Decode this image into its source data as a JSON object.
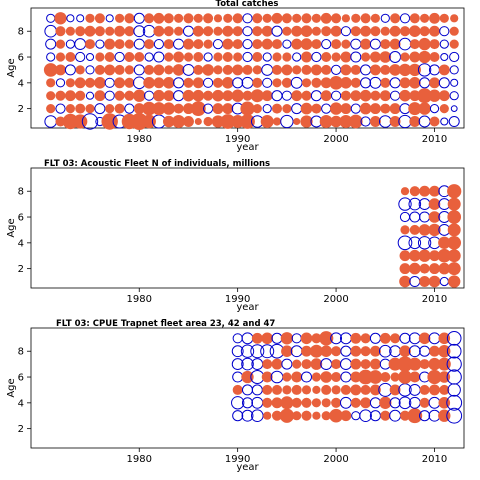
{
  "chart_data": [
    {
      "type": "scatter",
      "title": "Total catches",
      "xlabel": "year",
      "ylabel": "Age",
      "xlim": [
        1969,
        2013
      ],
      "ylim": [
        0.5,
        9.8
      ],
      "x_ticks": [
        1980,
        1990,
        2000,
        2010
      ],
      "y_ticks": [
        2,
        4,
        6,
        8
      ],
      "years": [
        1971,
        1972,
        1973,
        1974,
        1975,
        1976,
        1977,
        1978,
        1979,
        1980,
        1981,
        1982,
        1983,
        1984,
        1985,
        1986,
        1987,
        1988,
        1989,
        1990,
        1991,
        1992,
        1993,
        1994,
        1995,
        1996,
        1997,
        1998,
        1999,
        2000,
        2001,
        2002,
        2003,
        2004,
        2005,
        2006,
        2007,
        2008,
        2009,
        2010,
        2011,
        2012
      ],
      "ages": [
        1,
        2,
        3,
        4,
        5,
        6,
        7,
        8,
        9
      ],
      "residuals_by_age": [
        [
          -0.8,
          0.6,
          1.4,
          1.2,
          -1.4,
          -0.4,
          1.6,
          -1.0,
          1.4,
          1.7,
          1.1,
          -1.0,
          0.8,
          1.0,
          0.7,
          0.3,
          0.5,
          0.9,
          1.3,
          1.0,
          1.3,
          -0.8,
          1.0,
          0.4,
          -0.9,
          0.3,
          0.9,
          -0.7,
          1.0,
          0.8,
          1.0,
          1.1,
          -0.5,
          0.7,
          -0.8,
          0.7,
          -0.9,
          0.7,
          -0.7,
          0.6,
          -0.3,
          -0.6
        ],
        [
          0.5,
          -0.5,
          0.5,
          0.6,
          0.5,
          -0.6,
          0.5,
          0.6,
          -0.5,
          0.7,
          1.1,
          1.0,
          0.9,
          0.6,
          0.7,
          1.3,
          -0.5,
          0.7,
          0.7,
          -0.7,
          1.2,
          0.5,
          -0.4,
          0.6,
          0.5,
          -0.6,
          0.8,
          0.6,
          -0.5,
          0.9,
          0.7,
          -0.5,
          0.8,
          0.7,
          0.6,
          0.7,
          -0.6,
          1.0,
          0.9,
          -0.4,
          0.5,
          -0.2
        ],
        [
          0.5,
          0.6,
          0.7,
          0.6,
          -0.3,
          0.7,
          -0.5,
          0.6,
          0.6,
          0.9,
          -0.5,
          0.8,
          0.7,
          -0.6,
          0.8,
          0.8,
          0.6,
          0.8,
          0.7,
          0.9,
          0.6,
          1.0,
          0.7,
          -0.6,
          -0.5,
          0.7,
          0.6,
          -0.6,
          0.7,
          -0.5,
          0.6,
          0.7,
          0.8,
          0.6,
          0.7,
          -0.5,
          0.8,
          0.7,
          1.3,
          0.9,
          0.7,
          -0.4
        ],
        [
          0.5,
          -0.4,
          0.5,
          0.7,
          0.6,
          0.8,
          -0.5,
          0.7,
          0.6,
          -0.8,
          0.8,
          0.7,
          0.8,
          -0.6,
          0.6,
          0.7,
          -0.5,
          0.6,
          0.8,
          -0.6,
          -0.7,
          0.6,
          -0.5,
          0.5,
          0.6,
          -0.7,
          0.5,
          0.6,
          0.7,
          1.1,
          0.8,
          0.6,
          -0.6,
          -0.7,
          0.6,
          -0.6,
          0.7,
          0.8,
          -0.6,
          0.7,
          -0.6,
          -0.3
        ],
        [
          1.1,
          0.7,
          -0.6,
          0.5,
          -0.4,
          0.6,
          0.7,
          0.6,
          0.5,
          -0.6,
          0.6,
          0.7,
          0.5,
          0.8,
          -0.7,
          0.6,
          0.8,
          0.5,
          0.6,
          0.7,
          0.6,
          0.5,
          -0.7,
          0.6,
          0.7,
          0.5,
          0.6,
          0.7,
          0.6,
          -0.5,
          0.7,
          0.6,
          -0.6,
          0.7,
          0.6,
          0.8,
          0.9,
          0.9,
          -0.9,
          -0.6,
          0.7,
          -0.4
        ],
        [
          -0.4,
          0.5,
          0.6,
          -0.5,
          -0.3,
          0.5,
          0.6,
          -0.5,
          0.6,
          0.6,
          -0.4,
          -0.6,
          0.5,
          0.7,
          0.5,
          0.6,
          -0.4,
          0.5,
          0.6,
          0.5,
          -0.5,
          0.6,
          -0.4,
          0.5,
          0.5,
          -0.4,
          0.7,
          -0.5,
          0.6,
          0.5,
          0.7,
          -0.6,
          0.5,
          0.7,
          0.8,
          -0.7,
          0.5,
          0.7,
          0.9,
          0.6,
          -0.3,
          -0.5
        ],
        [
          -0.6,
          0.5,
          -0.4,
          -0.7,
          0.6,
          -0.4,
          0.7,
          0.6,
          0.5,
          -0.6,
          0.6,
          -0.5,
          0.6,
          -0.6,
          0.7,
          0.6,
          0.5,
          -0.5,
          0.7,
          0.6,
          -0.5,
          0.6,
          0.7,
          0.6,
          -0.4,
          0.7,
          0.8,
          0.6,
          -0.5,
          0.6,
          0.5,
          -0.6,
          0.7,
          -0.6,
          0.6,
          0.7,
          -0.8,
          0.6,
          0.9,
          0.6,
          -0.4,
          0.5
        ],
        [
          -0.8,
          0.6,
          0.5,
          0.6,
          0.7,
          0.6,
          0.5,
          0.7,
          0.6,
          -0.7,
          -0.8,
          0.7,
          0.6,
          0.5,
          -0.6,
          0.7,
          0.6,
          0.5,
          0.7,
          0.6,
          -0.5,
          0.6,
          0.7,
          -0.6,
          0.5,
          0.7,
          0.8,
          0.5,
          0.6,
          0.7,
          -0.5,
          0.6,
          0.7,
          0.6,
          0.5,
          0.7,
          0.6,
          0.8,
          0.6,
          0.7,
          -0.5,
          0.5
        ],
        [
          -0.4,
          0.9,
          -0.3,
          -0.3,
          0.5,
          0.6,
          -0.3,
          0.5,
          0.6,
          -0.6,
          0.6,
          0.7,
          0.6,
          0.5,
          0.6,
          0.5,
          0.6,
          0.4,
          0.5,
          0.6,
          -0.5,
          0.6,
          0.5,
          0.7,
          0.6,
          0.5,
          0.6,
          0.5,
          0.7,
          0.6,
          0.4,
          0.5,
          0.6,
          0.5,
          -0.4,
          0.6,
          -0.5,
          0.6,
          0.5,
          0.7,
          0.5,
          0.4
        ]
      ]
    },
    {
      "type": "scatter",
      "title": "FLT 03: Acoustic Fleet   N of individuals, millions",
      "xlabel": "year",
      "ylabel": "Age",
      "xlim": [
        1969,
        2013
      ],
      "ylim": [
        0.5,
        9.8
      ],
      "x_ticks": [
        1980,
        1990,
        2000,
        2010
      ],
      "y_ticks": [
        2,
        4,
        6,
        8
      ],
      "years": [
        2007,
        2008,
        2009,
        2010,
        2011,
        2012
      ],
      "ages": [
        1,
        2,
        3,
        4,
        5,
        6,
        7,
        8
      ],
      "residuals_by_age": [
        [
          0.8,
          -0.6,
          0.7,
          0.8,
          -0.4,
          0.9
        ],
        [
          0.7,
          0.8,
          0.6,
          0.7,
          0.8,
          1.0
        ],
        [
          0.7,
          0.8,
          0.9,
          0.7,
          1.1,
          1.0
        ],
        [
          -1.1,
          -0.8,
          -0.9,
          -0.8,
          0.9,
          1.1
        ],
        [
          0.5,
          0.6,
          0.8,
          0.9,
          -0.7,
          1.0
        ],
        [
          -0.5,
          -0.6,
          -0.6,
          0.8,
          -0.7,
          1.1
        ],
        [
          -0.9,
          -0.8,
          -0.7,
          0.8,
          -0.7,
          1.0
        ],
        [
          0.4,
          0.6,
          0.7,
          0.7,
          -0.7,
          1.2
        ]
      ]
    },
    {
      "type": "scatter",
      "title": "FLT 03: CPUE Trapnet fleet area 23, 42 and 47",
      "xlabel": "year",
      "ylabel": "Age",
      "xlim": [
        1969,
        2013
      ],
      "ylim": [
        0.5,
        9.8
      ],
      "x_ticks": [
        1980,
        1990,
        2000,
        2010
      ],
      "y_ticks": [
        2,
        4,
        6,
        8
      ],
      "years": [
        1990,
        1991,
        1992,
        1993,
        1994,
        1995,
        1996,
        1997,
        1998,
        1999,
        2000,
        2001,
        2002,
        2003,
        2004,
        2005,
        2006,
        2007,
        2008,
        2009,
        2010,
        2011,
        2012
      ],
      "ages": [
        3,
        4,
        5,
        6,
        7,
        8,
        9
      ],
      "residuals_by_age": [
        [
          -0.6,
          -0.7,
          -0.8,
          0.4,
          0.6,
          1.2,
          0.5,
          0.6,
          0.4,
          0.5,
          1.1,
          0.7,
          -0.4,
          -0.8,
          -0.6,
          0.6,
          -0.7,
          0.6,
          1.3,
          -0.6,
          -0.7,
          0.9,
          -1.3
        ],
        [
          -0.9,
          -0.6,
          -0.7,
          0.6,
          0.7,
          1.0,
          0.6,
          0.6,
          0.5,
          0.5,
          0.6,
          -0.7,
          0.6,
          0.7,
          -0.6,
          0.9,
          -0.6,
          -0.8,
          -0.7,
          0.6,
          -0.7,
          0.8,
          -1.3
        ],
        [
          0.6,
          -0.6,
          -0.6,
          0.6,
          0.6,
          0.5,
          0.6,
          0.5,
          0.4,
          0.6,
          0.5,
          0.6,
          0.7,
          0.6,
          0.7,
          -1.0,
          0.7,
          -0.9,
          -0.7,
          0.6,
          0.7,
          0.6,
          -0.9
        ],
        [
          -0.6,
          0.9,
          -1.0,
          0.7,
          -0.8,
          0.5,
          0.7,
          -0.6,
          0.5,
          0.8,
          0.6,
          -0.6,
          0.7,
          1.3,
          1.1,
          0.6,
          0.5,
          1.1,
          0.7,
          -0.6,
          1.2,
          0.8,
          -1.2
        ],
        [
          -0.7,
          -0.8,
          -0.7,
          0.6,
          0.7,
          -0.6,
          0.5,
          0.6,
          0.8,
          -0.7,
          0.6,
          -0.7,
          0.7,
          0.6,
          0.7,
          -0.6,
          1.0,
          1.4,
          1.0,
          0.6,
          0.9,
          1.0,
          -1.2
        ],
        [
          -0.7,
          -0.9,
          -1.0,
          -1.0,
          -1.1,
          0.8,
          -0.7,
          0.7,
          1.0,
          0.8,
          0.6,
          -0.6,
          0.7,
          0.6,
          0.7,
          -0.8,
          -0.7,
          0.8,
          -0.7,
          -0.6,
          0.7,
          0.9,
          -1.1
        ],
        [
          -0.5,
          -0.7,
          0.7,
          0.8,
          -0.6,
          0.9,
          -0.5,
          0.8,
          0.6,
          1.2,
          -0.7,
          -0.7,
          0.7,
          0.6,
          -0.6,
          0.7,
          0.6,
          -0.6,
          -0.7,
          0.8,
          -0.7,
          0.8,
          -1.1
        ]
      ]
    }
  ]
}
